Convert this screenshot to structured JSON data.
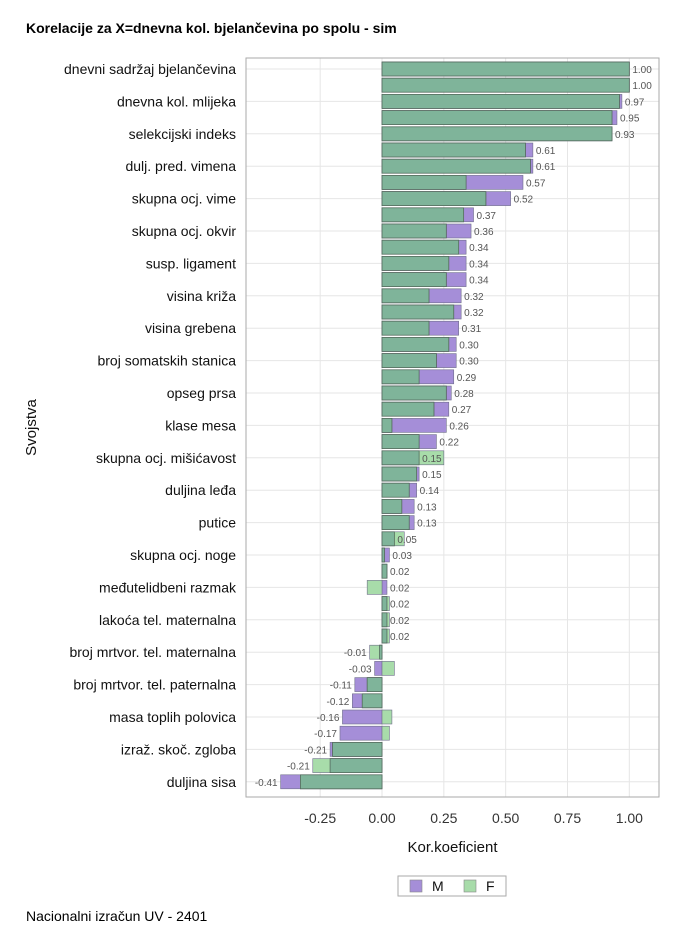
{
  "chart_data": {
    "type": "bar",
    "orientation": "horizontal",
    "title": "Korelacije za X=dnevna kol. bjelančevina po spolu - sim",
    "xlabel": "Kor.koeficient",
    "ylabel": "Svojstva",
    "xlim": [
      -0.55,
      1.12
    ],
    "x_ticks": [
      "-0.25",
      "0.00",
      "0.25",
      "0.50",
      "0.75",
      "1.00"
    ],
    "x_tick_values": [
      -0.25,
      0,
      0.25,
      0.5,
      0.75,
      1.0
    ],
    "grid": true,
    "legend_position": "bottom",
    "colors": {
      "M": "#a58ed8",
      "F": "#a8dcaa",
      "overlap": "#7fb49a",
      "grid": "#e6e6e6",
      "axis": "#aaaaaa"
    },
    "categories": [
      "dnevni sadržaj bjelančevina",
      "",
      "dnevna kol. mlijeka",
      "",
      "selekcijski indeks",
      "",
      "dulj. pred. vimena",
      "",
      "skupna ocj. vime",
      "",
      "skupna ocj. okvir",
      "",
      "susp. ligament",
      "",
      "visina križa",
      "",
      "visina grebena",
      "",
      "broj somatskih stanica",
      "",
      "opseg prsa",
      "",
      "klase mesa",
      "",
      "skupna ocj. mišićavost",
      "",
      "duljina leđa",
      "",
      "putice",
      "",
      "skupna ocj. noge",
      "",
      "međutelidbeni razmak",
      "",
      "lakoća tel. maternalna",
      "",
      "broj mrtvor. tel. maternalna",
      "",
      "broj mrtvor. tel. paternalna",
      "",
      "masa toplih polovica",
      "",
      "izraž. skoč. zgloba",
      "",
      "duljina sisa"
    ],
    "series": [
      {
        "name": "M",
        "values": [
          1.0,
          1.0,
          0.97,
          0.95,
          0.93,
          0.61,
          0.61,
          0.57,
          0.52,
          0.37,
          0.36,
          0.34,
          0.34,
          0.34,
          0.32,
          0.32,
          0.31,
          0.3,
          0.3,
          0.29,
          0.28,
          0.27,
          0.26,
          0.22,
          0.15,
          0.15,
          0.14,
          0.13,
          0.13,
          0.05,
          0.03,
          0.02,
          0.02,
          0.02,
          0.02,
          0.02,
          -0.01,
          -0.03,
          -0.11,
          -0.12,
          -0.16,
          -0.17,
          -0.21,
          -0.21,
          -0.41
        ]
      },
      {
        "name": "F",
        "values": [
          1.0,
          1.0,
          0.96,
          0.93,
          0.93,
          0.58,
          0.6,
          0.34,
          0.42,
          0.33,
          0.26,
          0.31,
          0.27,
          0.26,
          0.19,
          0.29,
          0.19,
          0.27,
          0.22,
          0.15,
          0.26,
          0.21,
          0.04,
          0.15,
          0.25,
          0.14,
          0.11,
          0.08,
          0.11,
          0.09,
          0.01,
          0.02,
          -0.06,
          0.03,
          0.03,
          0.03,
          -0.05,
          0.05,
          -0.06,
          -0.08,
          0.04,
          0.03,
          -0.2,
          -0.28,
          -0.33
        ]
      }
    ],
    "value_labels": [
      "1.00",
      "1.00",
      "0.97",
      "0.95",
      "0.93",
      "0.61",
      "0.61",
      "0.57",
      "0.52",
      "0.37",
      "0.36",
      "0.34",
      "0.34",
      "0.34",
      "0.32",
      "0.32",
      "0.31",
      "0.30",
      "0.30",
      "0.29",
      "0.28",
      "0.27",
      "0.26",
      "0.22",
      "0.15",
      "0.15",
      "0.14",
      "0.13",
      "0.13",
      "0.05",
      "0.03",
      "0.02",
      "0.02",
      "0.02",
      "0.02",
      "0.02",
      "-0.01",
      "-0.03",
      "-0.11",
      "-0.12",
      "-0.16",
      "-0.17",
      "-0.21",
      "-0.21",
      "-0.41"
    ],
    "legend": [
      {
        "label": "M",
        "color": "#a58ed8"
      },
      {
        "label": "F",
        "color": "#a8dcaa"
      }
    ]
  },
  "footnote": "Nacionalni izračun UV - 2401"
}
